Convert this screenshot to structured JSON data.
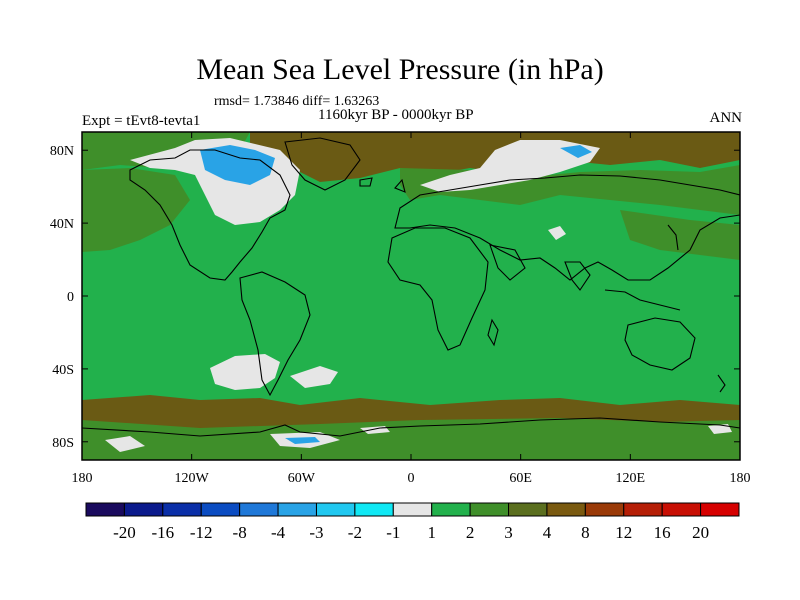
{
  "map": {
    "title": "Mean Sea Level Pressure (in hPa)",
    "stats": "rmsd= 1.73846 diff= 1.63263",
    "experiment": "Expt = tEvt8-tevta1",
    "period": "1160kyr BP - 0000kyr BP",
    "season": "ANN",
    "lat_labels": [
      "80N",
      "40N",
      "0",
      "40S",
      "80S"
    ],
    "lat_values": [
      80,
      40,
      0,
      -40,
      -80
    ],
    "lon_labels": [
      "180",
      "120W",
      "60W",
      "0",
      "60E",
      "120E",
      "180"
    ],
    "lon_values": [
      -180,
      -120,
      -60,
      0,
      60,
      120,
      180
    ],
    "lat_range": [
      -90,
      90
    ],
    "lon_range": [
      -180,
      180
    ],
    "dominant_class": "1 to 2"
  },
  "colorbar": {
    "labels": [
      "-20",
      "-16",
      "-12",
      "-8",
      "-4",
      "-3",
      "-2",
      "-1",
      "1",
      "2",
      "3",
      "4",
      "8",
      "12",
      "16",
      "20"
    ],
    "colors": [
      "#1a0a5e",
      "#0b1a8c",
      "#0a2fa8",
      "#0b4cc2",
      "#1f78d8",
      "#29a3e6",
      "#21c8f0",
      "#10e8f4",
      "#e6e6e6",
      "#22b14c",
      "#3f8f2a",
      "#5b6f1f",
      "#7a5a10",
      "#9a3a08",
      "#b51e06",
      "#c80f04",
      "#d60000"
    ]
  },
  "chart_data": {
    "type": "heatmap",
    "variable": "Mean Sea Level Pressure difference (hPa)",
    "levels": [
      -20,
      -16,
      -12,
      -8,
      -4,
      -3,
      -2,
      -1,
      1,
      2,
      3,
      4,
      8,
      12,
      16,
      20
    ],
    "regions": [
      {
        "region": "Global ocean and most land",
        "class": "1 to 2"
      },
      {
        "region": "Canadian Arctic / Greenland west",
        "class": "-1 to 1 with patches -3 to -1"
      },
      {
        "region": "Arctic Ocean / Greenland",
        "class": "3 to 4"
      },
      {
        "region": "Eastern North Pacific",
        "class": "2 to 3"
      },
      {
        "region": "Scandinavia / Barents Sea",
        "class": "-1 to 1"
      },
      {
        "region": "South Pacific near 40S",
        "class": "-1 to 1"
      },
      {
        "region": "Southern Ocean 60S-80S",
        "class": "3 to 4"
      },
      {
        "region": "Antarctica interior",
        "class": "2 to 3"
      }
    ]
  }
}
